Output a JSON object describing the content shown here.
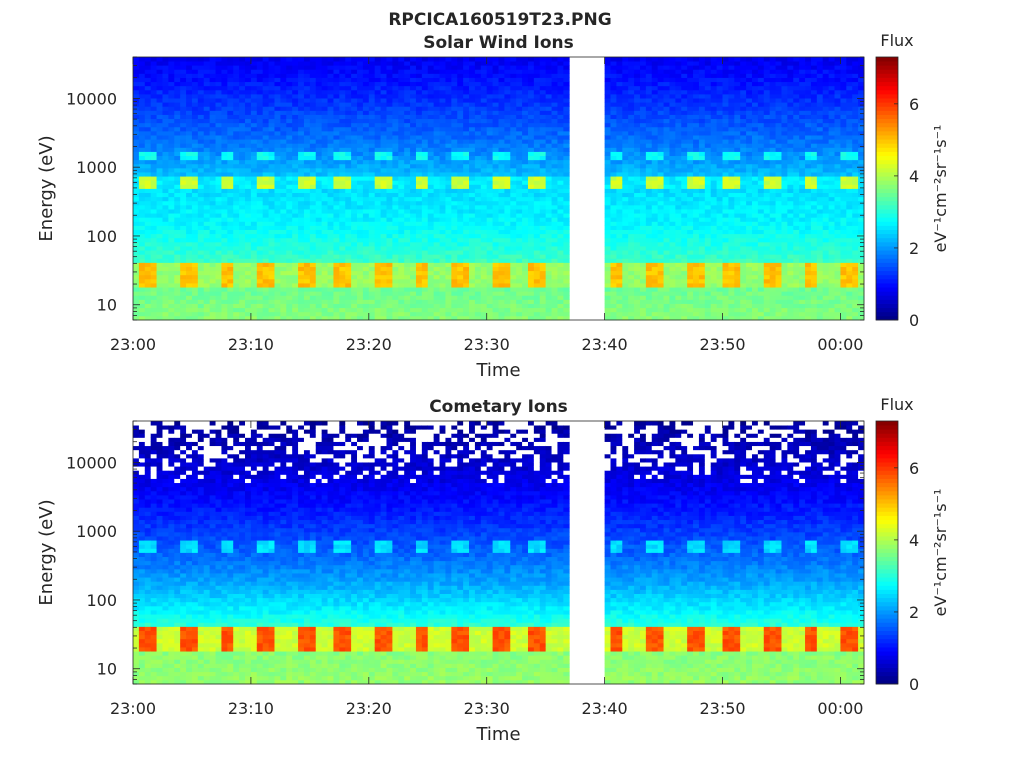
{
  "figure": {
    "title": "RPCICA160519T23.PNG"
  },
  "chart_data": [
    {
      "type": "heatmap",
      "title": "Solar Wind Ions",
      "xlabel": "Time",
      "ylabel": "Energy (eV)",
      "x_ticks": [
        "23:00",
        "23:10",
        "23:20",
        "23:30",
        "23:40",
        "23:50",
        "00:00"
      ],
      "x_range": [
        "23:00",
        "00:02"
      ],
      "y_scale": "log",
      "y_ticks": [
        10,
        100,
        1000,
        10000
      ],
      "y_tick_labels": [
        "10",
        "100",
        "1000",
        "10000"
      ],
      "ylim": [
        6,
        40000
      ],
      "data_gap": [
        "23:37",
        "23:40"
      ],
      "colorbar": {
        "label": "Flux",
        "axis_label": "eV⁻¹cm⁻²sr⁻¹s⁻¹",
        "range": [
          0,
          7.3
        ],
        "ticks": [
          0,
          2,
          4,
          6
        ],
        "colormap": "jet"
      },
      "sweep_period_min": 3.3,
      "features": [
        {
          "name": "low-energy band",
          "energy_eV": [
            18,
            40
          ],
          "peak_flux": 5.0,
          "background_flux": 3.8
        },
        {
          "name": "mid-energy band",
          "energy_eV": [
            500,
            700
          ],
          "peak_flux": 4.2,
          "background_flux": 2.6
        },
        {
          "name": "secondary band",
          "energy_eV": [
            1200,
            1600
          ],
          "peak_flux": 2.8,
          "background_flux": 1.9
        }
      ],
      "background_profile": [
        {
          "energy_eV": 6,
          "flux": 3.7
        },
        {
          "energy_eV": 20,
          "flux": 3.5
        },
        {
          "energy_eV": 50,
          "flux": 3.1
        },
        {
          "energy_eV": 150,
          "flux": 2.7
        },
        {
          "energy_eV": 500,
          "flux": 2.5
        },
        {
          "energy_eV": 2000,
          "flux": 1.8
        },
        {
          "energy_eV": 8000,
          "flux": 1.3
        },
        {
          "energy_eV": 40000,
          "flux": 0.8
        }
      ]
    },
    {
      "type": "heatmap",
      "title": "Cometary Ions",
      "xlabel": "Time",
      "ylabel": "Energy (eV)",
      "x_ticks": [
        "23:00",
        "23:10",
        "23:20",
        "23:30",
        "23:40",
        "23:50",
        "00:00"
      ],
      "x_range": [
        "23:00",
        "00:02"
      ],
      "y_scale": "log",
      "y_ticks": [
        10,
        100,
        1000,
        10000
      ],
      "y_tick_labels": [
        "10",
        "100",
        "1000",
        "10000"
      ],
      "ylim": [
        6,
        40000
      ],
      "data_gap": [
        "23:37",
        "23:40"
      ],
      "colorbar": {
        "label": "Flux",
        "axis_label": "eV⁻¹cm⁻²sr⁻¹s⁻¹",
        "range": [
          0,
          7.3
        ],
        "ticks": [
          0,
          2,
          4,
          6
        ],
        "colormap": "jet"
      },
      "sweep_period_min": 3.3,
      "features": [
        {
          "name": "low-energy band",
          "energy_eV": [
            18,
            40
          ],
          "peak_flux": 5.8,
          "background_flux": 4.2
        },
        {
          "name": "mid-energy band",
          "energy_eV": [
            500,
            700
          ],
          "peak_flux": 2.5,
          "background_flux": 1.4
        }
      ],
      "background_profile": [
        {
          "energy_eV": 6,
          "flux": 3.8
        },
        {
          "energy_eV": 20,
          "flux": 3.7
        },
        {
          "energy_eV": 50,
          "flux": 2.9
        },
        {
          "energy_eV": 150,
          "flux": 2.2
        },
        {
          "energy_eV": 500,
          "flux": 1.6
        },
        {
          "energy_eV": 2000,
          "flux": 1.1
        },
        {
          "energy_eV": 8000,
          "flux": 0.6
        },
        {
          "energy_eV": 40000,
          "flux": 0.2
        }
      ],
      "empty_bins_above_eV": 5000
    }
  ]
}
